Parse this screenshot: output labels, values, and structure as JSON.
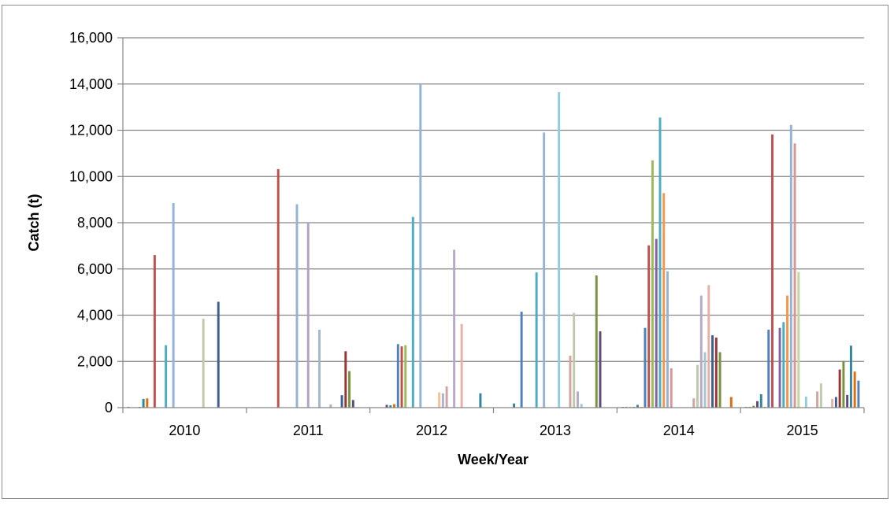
{
  "chart_data": {
    "type": "bar",
    "title": "",
    "xlabel": "Week/Year",
    "ylabel": "Catch (t)",
    "ylim": [
      0,
      16000
    ],
    "yticks": [
      "0",
      "2,000",
      "4,000",
      "6,000",
      "8,000",
      "10,000",
      "12,000",
      "14,000",
      "16,000"
    ],
    "categories": [
      "2010",
      "2011",
      "2012",
      "2013",
      "2014",
      "2015"
    ],
    "grid": "horizontal",
    "legend": "none",
    "colors": [
      "#3e5f91",
      "#953735",
      "#77933c",
      "#5f497a",
      "#31859c",
      "#e46c0a",
      "#4f81bd",
      "#c0504d",
      "#9bbb59",
      "#8064a2",
      "#4bacc6",
      "#f79646",
      "#95b3d7",
      "#d99694",
      "#c3d69b",
      "#b3a2c7",
      "#93cddd",
      "#fac090",
      "#a5b6cf",
      "#d1a4a3",
      "#c0c9a9",
      "#b7a9c8",
      "#a7c6d1",
      "#e6b0a8"
    ],
    "series": [
      {
        "values": [
          30,
          0,
          0,
          0,
          30,
          30
        ]
      },
      {
        "values": [
          0,
          0,
          0,
          0,
          30,
          30
        ]
      },
      {
        "values": [
          0,
          0,
          0,
          0,
          30,
          80
        ]
      },
      {
        "values": [
          30,
          0,
          120,
          0,
          30,
          280
        ]
      },
      {
        "values": [
          380,
          0,
          100,
          180,
          120,
          580
        ]
      },
      {
        "values": [
          400,
          0,
          150,
          0,
          30,
          30
        ]
      },
      {
        "values": [
          0,
          0,
          2750,
          4150,
          3450,
          3370
        ]
      },
      {
        "values": [
          6600,
          10320,
          2650,
          0,
          7020,
          11820
        ]
      },
      {
        "values": [
          0,
          0,
          2700,
          0,
          10700,
          0
        ]
      },
      {
        "values": [
          0,
          0,
          0,
          0,
          7300,
          3450
        ]
      },
      {
        "values": [
          2700,
          0,
          8250,
          5850,
          12550,
          3700
        ]
      },
      {
        "values": [
          0,
          0,
          0,
          0,
          9280,
          4850
        ]
      },
      {
        "values": [
          8850,
          8800,
          14000,
          11900,
          5900,
          12230
        ]
      },
      {
        "values": [
          0,
          0,
          0,
          0,
          1700,
          11430
        ]
      },
      {
        "values": [
          0,
          0,
          0,
          0,
          0,
          5870
        ]
      },
      {
        "values": [
          0,
          8000,
          0,
          0,
          0,
          0
        ]
      },
      {
        "values": [
          0,
          0,
          0,
          13650,
          0,
          480
        ]
      },
      {
        "values": [
          0,
          0,
          660,
          0,
          0,
          0
        ]
      },
      {
        "values": [
          0,
          3370,
          620,
          0,
          0,
          0
        ]
      },
      {
        "values": [
          0,
          0,
          920,
          2250,
          400,
          700
        ]
      },
      {
        "values": [
          3850,
          0,
          0,
          4100,
          1850,
          1050
        ]
      },
      {
        "values": [
          0,
          140,
          6830,
          700,
          4850,
          0
        ]
      },
      {
        "values": [
          0,
          0,
          0,
          160,
          2400,
          0
        ]
      },
      {
        "values": [
          0,
          0,
          3620,
          0,
          5300,
          380
        ]
      },
      {
        "values": [
          4580,
          540,
          0,
          0,
          3130,
          460
        ]
      },
      {
        "values": [
          0,
          2440,
          0,
          0,
          3030,
          1650
        ]
      },
      {
        "values": [
          0,
          1580,
          0,
          5720,
          2400,
          2020
        ]
      },
      {
        "values": [
          0,
          330,
          0,
          3300,
          0,
          550
        ]
      },
      {
        "values": [
          0,
          0,
          620,
          0,
          0,
          2680
        ]
      },
      {
        "values": [
          0,
          0,
          0,
          0,
          460,
          1560
        ]
      },
      {
        "values": [
          0,
          0,
          0,
          0,
          0,
          1170
        ]
      }
    ]
  }
}
